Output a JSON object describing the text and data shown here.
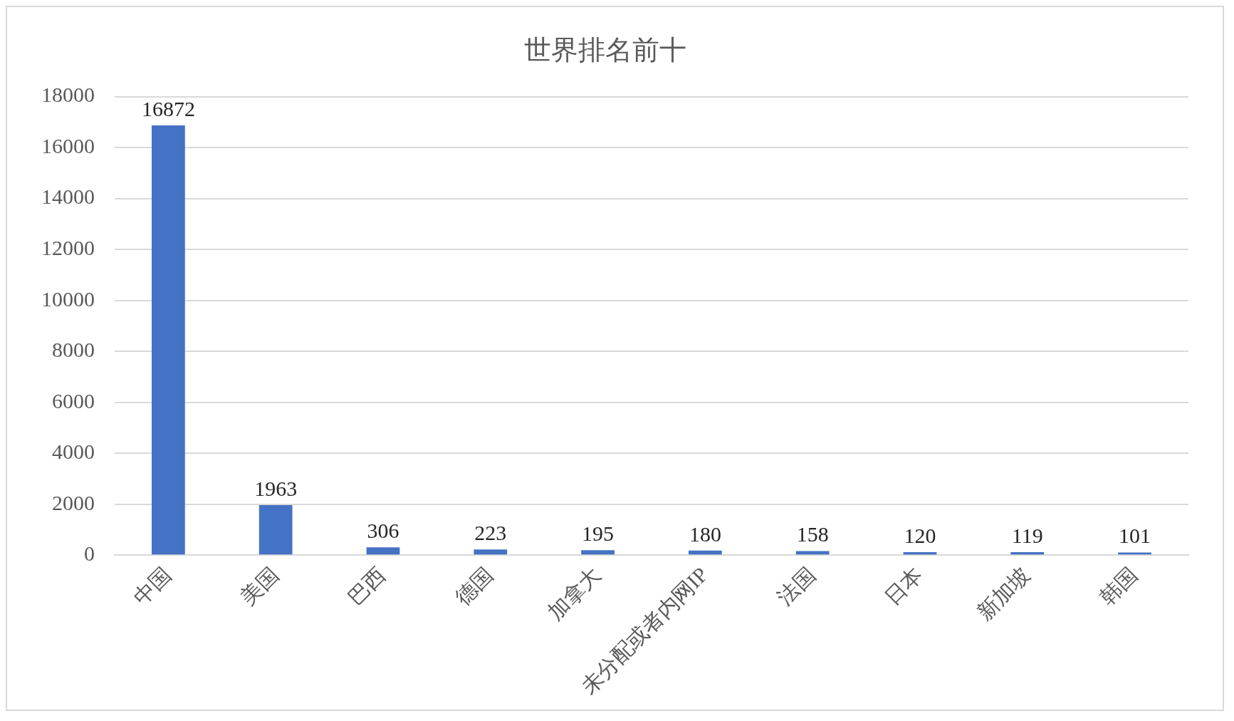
{
  "chart_data": {
    "type": "bar",
    "title": "世界排名前十",
    "categories": [
      "中国",
      "美国",
      "巴西",
      "德国",
      "加拿大",
      "未分配或者内网IP",
      "法国",
      "日本",
      "新加坡",
      "韩国"
    ],
    "values": [
      16872,
      1963,
      306,
      223,
      195,
      180,
      158,
      120,
      119,
      101
    ],
    "color": "#4472c4",
    "ylim": [
      0,
      18000
    ],
    "yticks": [
      0,
      2000,
      4000,
      6000,
      8000,
      10000,
      12000,
      14000,
      16000,
      18000
    ],
    "grid": "y",
    "data_labels": true,
    "legend": false
  }
}
